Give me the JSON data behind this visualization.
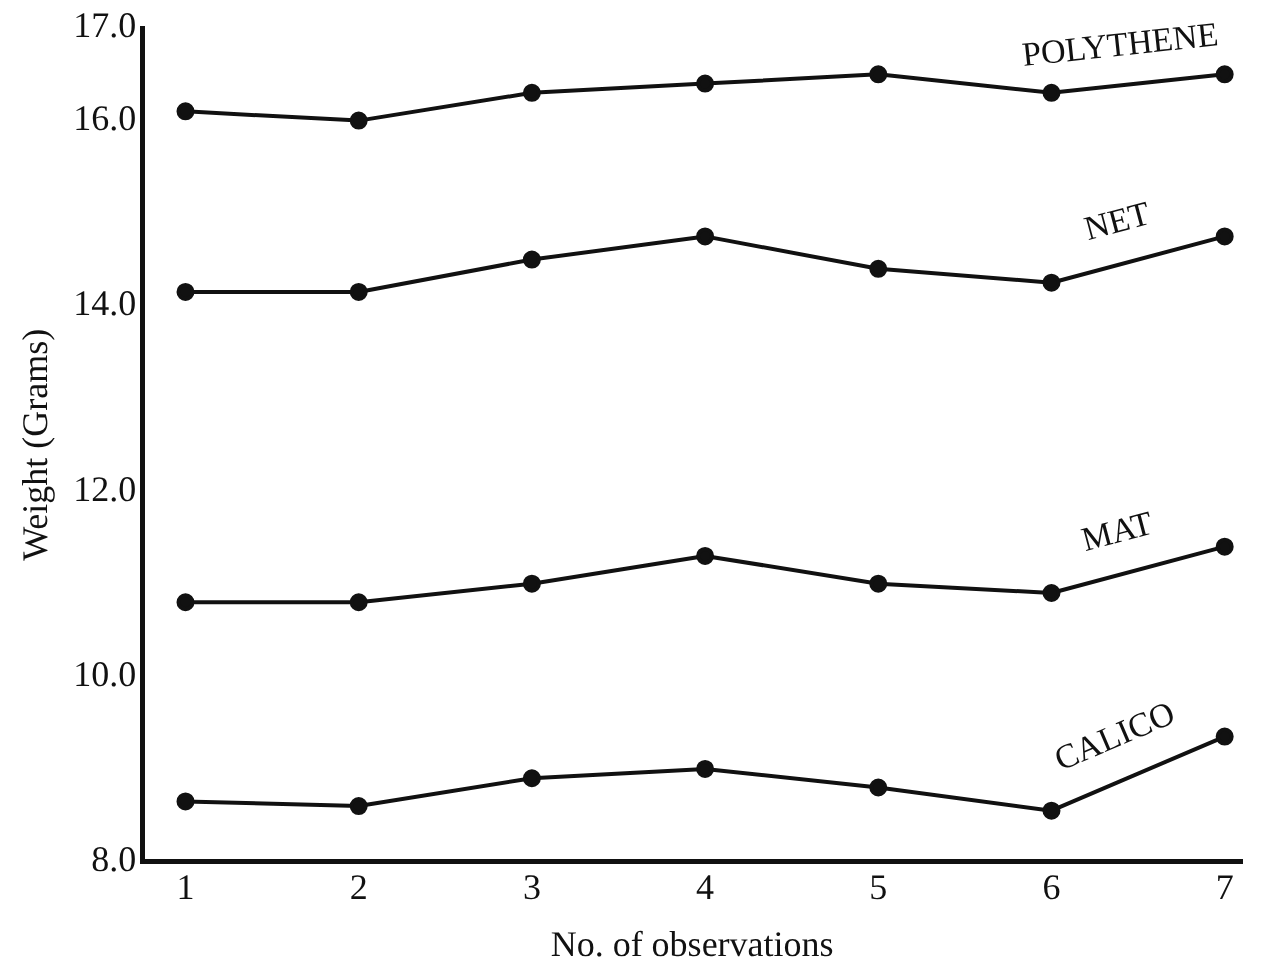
{
  "chart_data": {
    "type": "line",
    "xlabel": "No. of observations",
    "ylabel": "Weight (Grams)",
    "x": [
      1,
      2,
      3,
      4,
      5,
      6,
      7
    ],
    "xlim": [
      0.75,
      7.1
    ],
    "xticks": [
      1,
      2,
      3,
      4,
      5,
      6,
      7
    ],
    "ylim": [
      8,
      17
    ],
    "yticks": [
      {
        "value": 8,
        "label": "8.0"
      },
      {
        "value": 10,
        "label": "10.0"
      },
      {
        "value": 12,
        "label": "12.0"
      },
      {
        "value": 14,
        "label": "14.0"
      },
      {
        "value": 16,
        "label": "16.0"
      },
      {
        "value": 17,
        "label": "17.0"
      }
    ],
    "grid": false,
    "marker": "circle",
    "line_style": "solid",
    "series": [
      {
        "name": "POLYTHENE",
        "color": "#111111",
        "values": [
          16.1,
          16.0,
          16.3,
          16.4,
          16.5,
          16.3,
          16.5
        ]
      },
      {
        "name": "NET",
        "color": "#111111",
        "values": [
          14.15,
          14.15,
          14.5,
          14.75,
          14.4,
          14.25,
          14.75
        ]
      },
      {
        "name": "MAT",
        "color": "#111111",
        "values": [
          10.8,
          10.8,
          11.0,
          11.3,
          11.0,
          10.9,
          11.4
        ]
      },
      {
        "name": "CALICO",
        "color": "#111111",
        "values": [
          8.65,
          8.6,
          8.9,
          9.0,
          8.8,
          8.55,
          9.35
        ]
      }
    ]
  }
}
